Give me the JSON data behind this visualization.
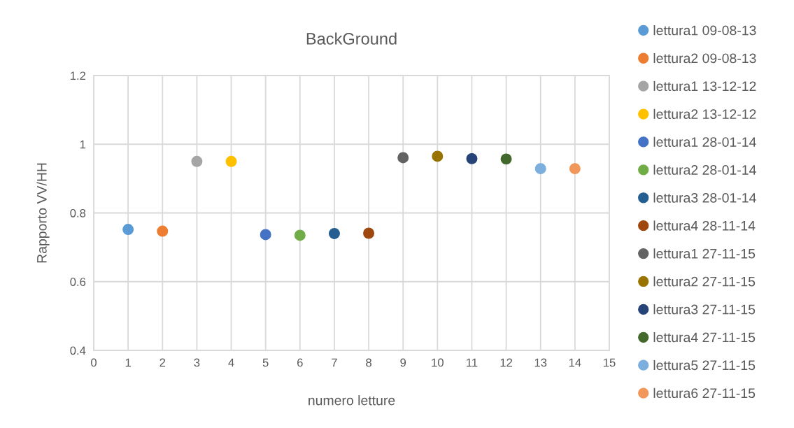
{
  "chart_data": {
    "type": "scatter",
    "title": "BackGround",
    "xlabel": "numero letture",
    "ylabel": "Rapporto VV/HH",
    "xlim": [
      0,
      15
    ],
    "xticks": [
      0,
      1,
      2,
      3,
      4,
      5,
      6,
      7,
      8,
      9,
      10,
      11,
      12,
      13,
      14,
      15
    ],
    "ylim": [
      0.4,
      1.2
    ],
    "yticks": [
      0.4,
      0.6,
      0.8,
      1,
      1.2
    ],
    "grid": true,
    "legend": "right",
    "marker": "circle",
    "series": [
      {
        "name": "lettura1 09-08-13",
        "color": "#5b9bd5",
        "x": [
          1
        ],
        "values": [
          0.752
        ]
      },
      {
        "name": "lettura2 09-08-13",
        "color": "#ed7d31",
        "x": [
          2
        ],
        "values": [
          0.747
        ]
      },
      {
        "name": "lettura1 13-12-12",
        "color": "#a5a5a5",
        "x": [
          3
        ],
        "values": [
          0.95
        ]
      },
      {
        "name": "lettura2 13-12-12",
        "color": "#ffc000",
        "x": [
          4
        ],
        "values": [
          0.95
        ]
      },
      {
        "name": "lettura1 28-01-14",
        "color": "#4472c4",
        "x": [
          5
        ],
        "values": [
          0.737
        ]
      },
      {
        "name": "lettura2 28-01-14",
        "color": "#70ad47",
        "x": [
          6
        ],
        "values": [
          0.735
        ]
      },
      {
        "name": "lettura3 28-01-14",
        "color": "#255e91",
        "x": [
          7
        ],
        "values": [
          0.74
        ]
      },
      {
        "name": "lettura4 28-11-14",
        "color": "#9e480e",
        "x": [
          8
        ],
        "values": [
          0.741
        ]
      },
      {
        "name": "lettura1 27-11-15",
        "color": "#636363",
        "x": [
          9
        ],
        "values": [
          0.961
        ]
      },
      {
        "name": "lettura2 27-11-15",
        "color": "#997300",
        "x": [
          10
        ],
        "values": [
          0.965
        ]
      },
      {
        "name": "lettura3 27-11-15",
        "color": "#264478",
        "x": [
          11
        ],
        "values": [
          0.958
        ]
      },
      {
        "name": "lettura4 27-11-15",
        "color": "#43682b",
        "x": [
          12
        ],
        "values": [
          0.957
        ]
      },
      {
        "name": "lettura5 27-11-15",
        "color": "#7cafdd",
        "x": [
          13
        ],
        "values": [
          0.929
        ]
      },
      {
        "name": "lettura6 27-11-15",
        "color": "#f1975a",
        "x": [
          14
        ],
        "values": [
          0.929
        ]
      }
    ]
  }
}
